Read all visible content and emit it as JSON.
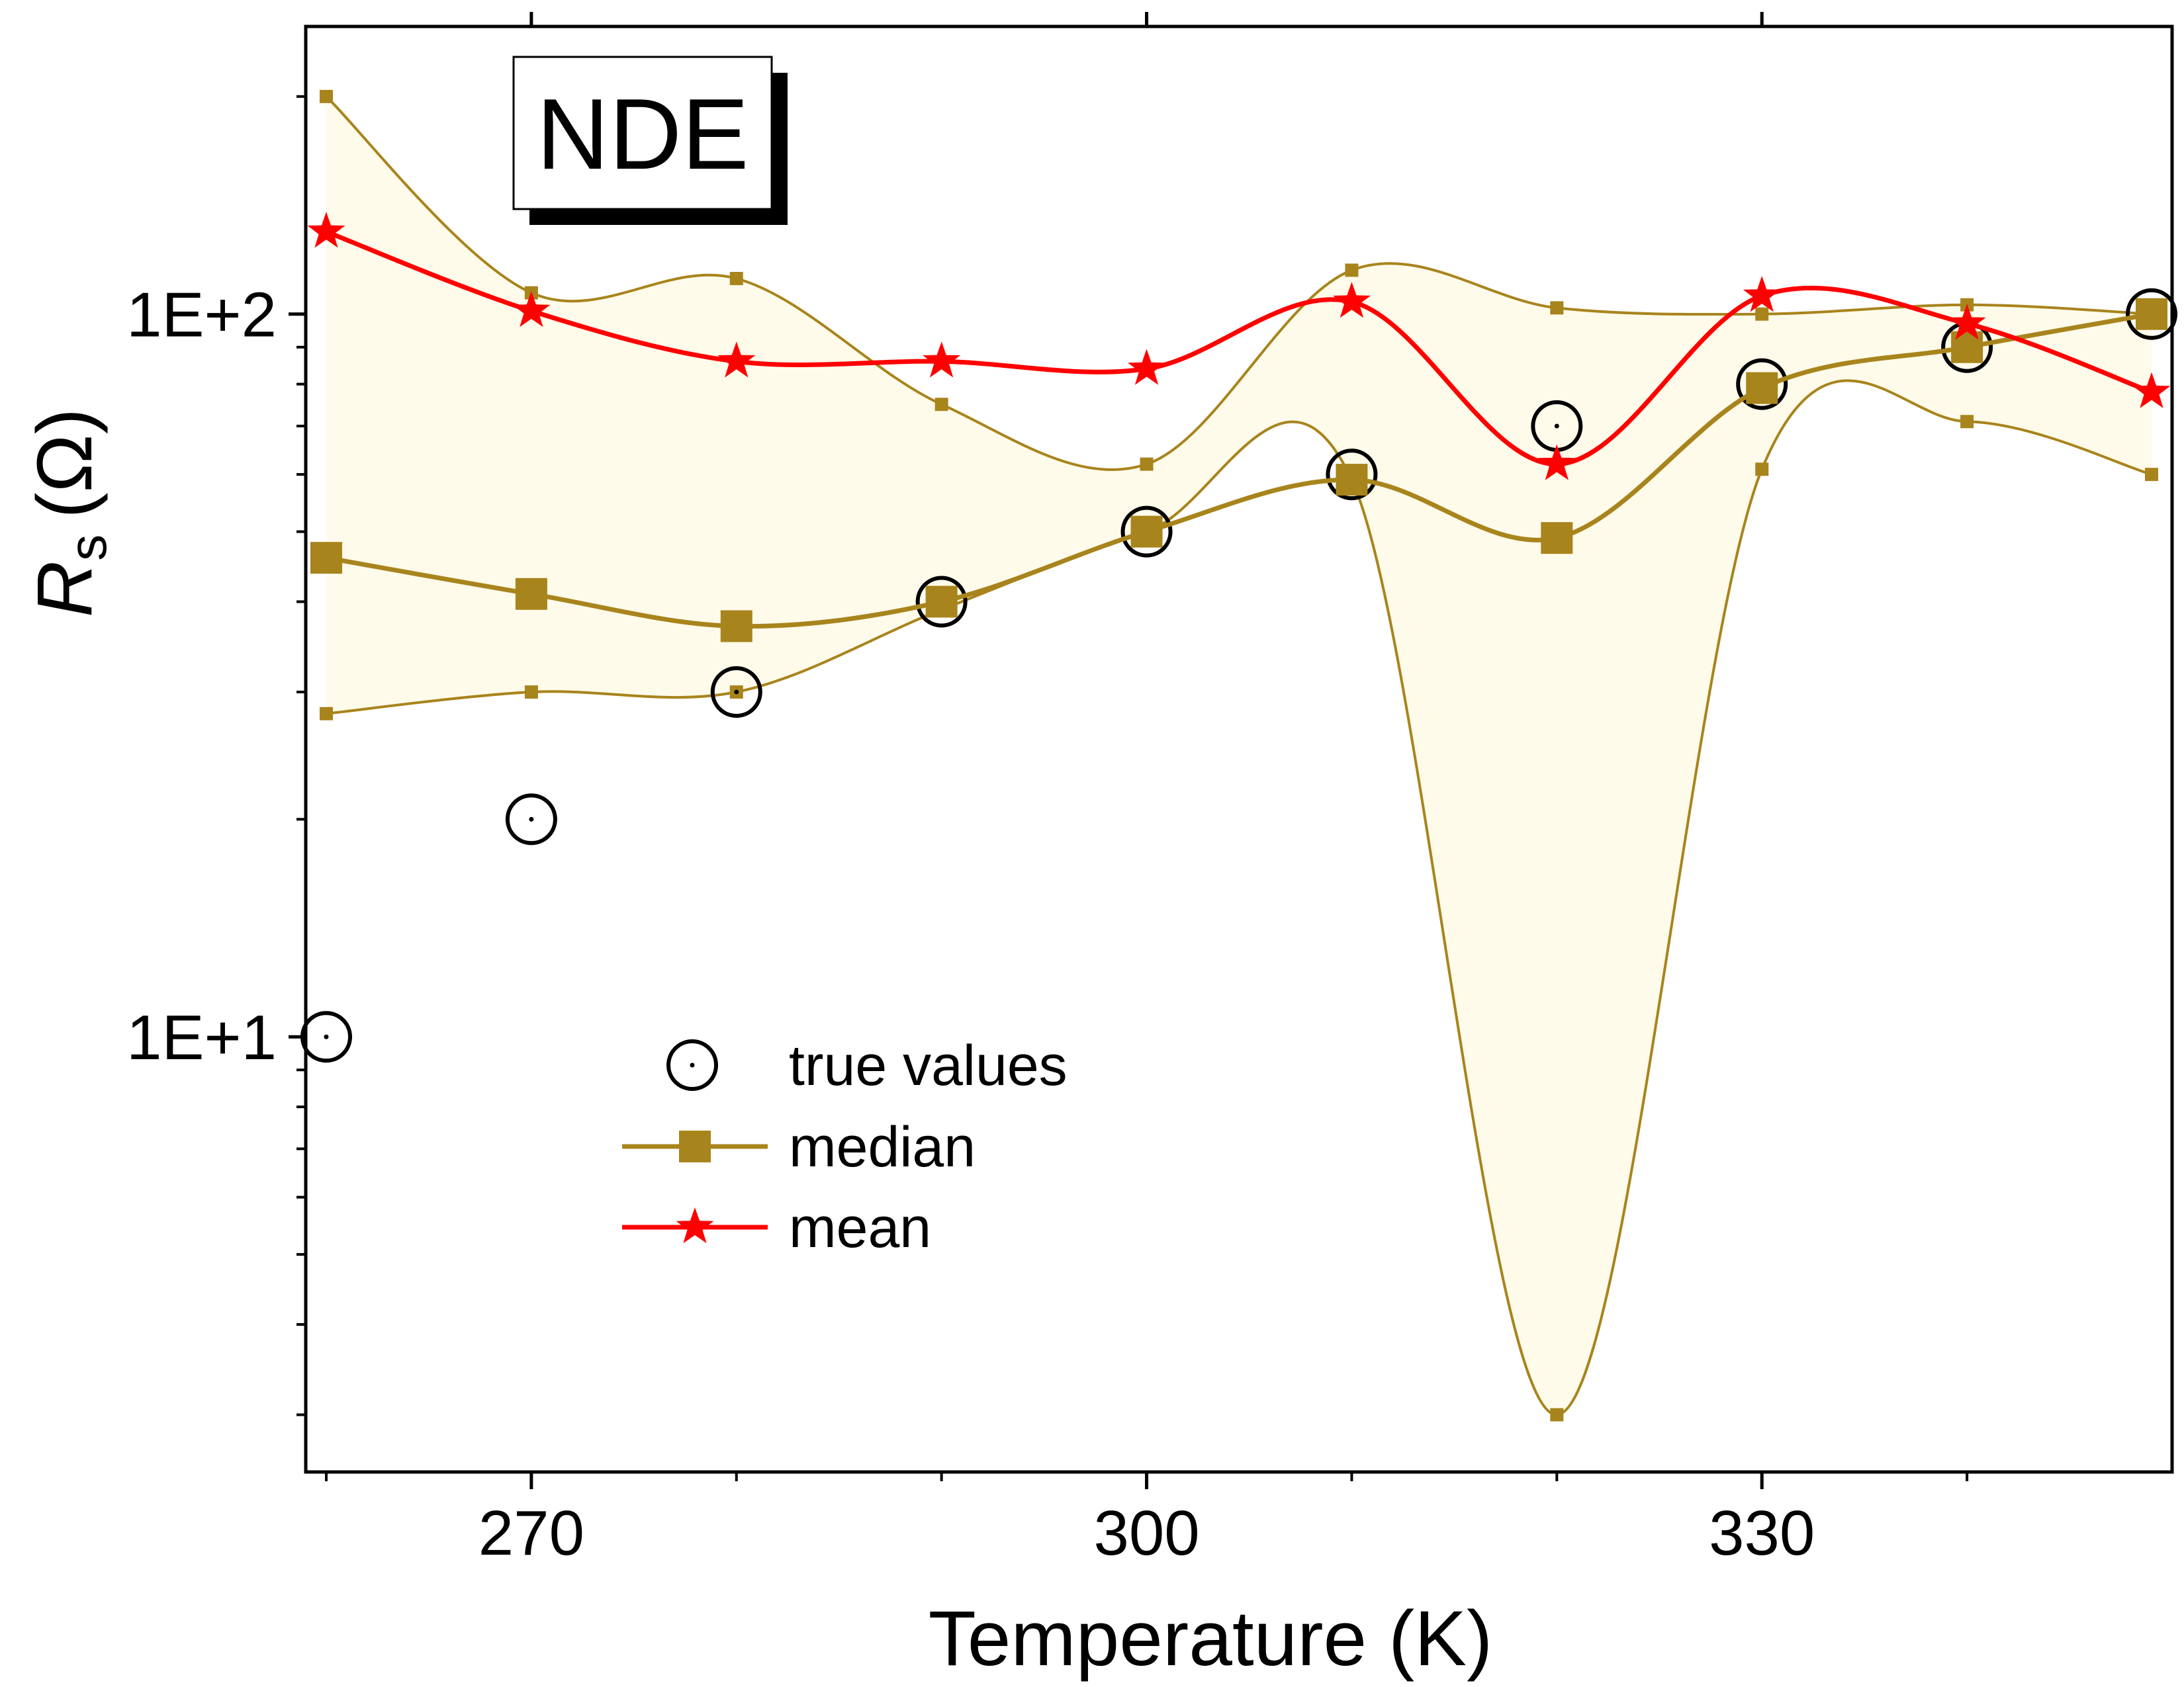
{
  "chart_data": {
    "type": "line",
    "badge": "NDE",
    "xlabel": "Temperature (K)",
    "ylabel": {
      "main": "R",
      "sub": "s",
      "unit": "(Ω)"
    },
    "x_scale": "linear",
    "y_scale": "log",
    "xlim": [
      259,
      350
    ],
    "ylim": [
      2.5,
      250
    ],
    "x_ticks": [
      270,
      300,
      330
    ],
    "x_minor_ticks": [
      260,
      280,
      290,
      310,
      320,
      340
    ],
    "y_ticks": [
      {
        "value": 10,
        "label": "1E+1"
      },
      {
        "value": 100,
        "label": "1E+2"
      }
    ],
    "grid": false,
    "legend_position": "center-left",
    "x": [
      260,
      270,
      280,
      290,
      300,
      310,
      320,
      330,
      340,
      349
    ],
    "band": {
      "upper": [
        200,
        107,
        112,
        75,
        62,
        115,
        102,
        100,
        103,
        100
      ],
      "lower": [
        28,
        30,
        30,
        39,
        50,
        59,
        3,
        61,
        71,
        60
      ],
      "fill_color": "#fffbea",
      "line_color": "#a8841c"
    },
    "series": [
      {
        "name": "true values",
        "marker": "circle-dot",
        "color": "#000000",
        "x": [
          260,
          270,
          280,
          290,
          300,
          310,
          320,
          330,
          340,
          349
        ],
        "values": [
          10,
          20,
          30,
          40,
          50,
          60,
          70,
          80,
          90,
          100
        ]
      },
      {
        "name": "median",
        "marker": "square",
        "color": "#a8841c",
        "x": [
          260,
          270,
          280,
          290,
          300,
          310,
          320,
          330,
          340,
          349
        ],
        "values": [
          46,
          41,
          37,
          40,
          50,
          59,
          49,
          79,
          90,
          100
        ]
      },
      {
        "name": "mean",
        "marker": "star",
        "color": "#ff0000",
        "x": [
          260,
          270,
          280,
          290,
          300,
          310,
          320,
          330,
          340,
          349
        ],
        "values": [
          130,
          101,
          86,
          86,
          84,
          104,
          62,
          106,
          97,
          78
        ]
      }
    ]
  }
}
